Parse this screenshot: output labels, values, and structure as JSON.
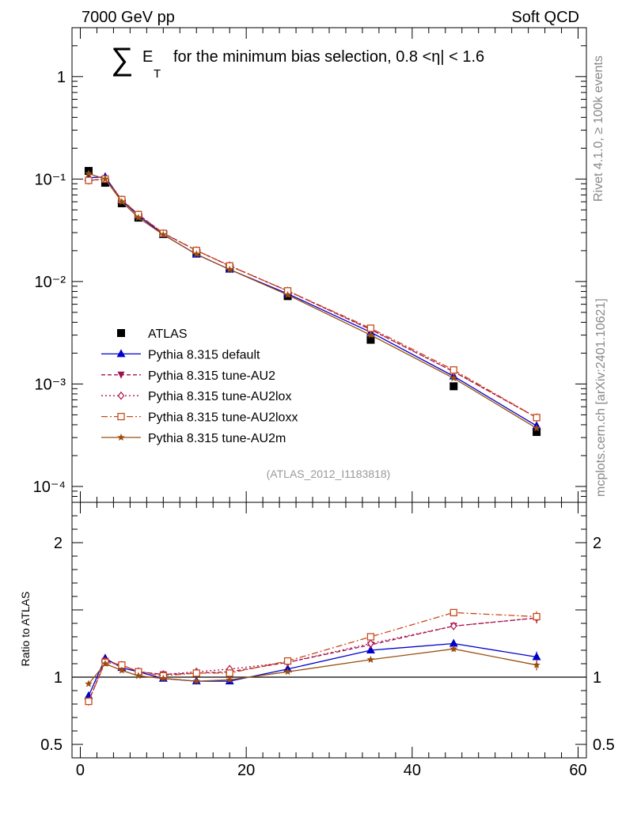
{
  "header": {
    "energy": "7000 GeV pp",
    "process": "Soft QCD",
    "side_rivet": "Rivet 4.1.0, ≥ 100k events",
    "side_mcplots": "mcplots.cern.ch [arXiv:2401.10621]",
    "analysis_id": "(ATLAS_2012_I1183818)"
  },
  "title": {
    "sum_symbol": "∑",
    "e_letter": "E",
    "t_sub": "T",
    "text": "for the minimum bias selection, 0.8 <η| < 1.6"
  },
  "colors": {
    "data": "#000000",
    "default": "#0000cc",
    "au2": "#a01050",
    "au2lox": "#b0104a",
    "au2loxx": "#c84a18",
    "au2m": "#9a4f0f",
    "ref_line": "#000000"
  },
  "chart_data": [
    {
      "type": "line",
      "panel": "main",
      "yscale": "log",
      "xlim": [
        -1,
        61
      ],
      "ylim": [
        7e-05,
        3
      ],
      "y_tick_labels": [
        "1",
        "10⁻¹",
        "10⁻²",
        "10⁻³",
        "10⁻⁴"
      ],
      "y_tick_values": [
        1,
        0.1,
        0.01,
        0.001,
        0.0001
      ],
      "x": [
        1,
        3,
        5,
        7,
        10,
        14,
        18,
        25,
        35,
        45,
        55
      ],
      "series": [
        {
          "name": "ATLAS",
          "key": "data",
          "marker": "square",
          "values": [
            0.12,
            0.092,
            0.058,
            0.042,
            0.029,
            0.019,
            0.0135,
            0.0072,
            0.0027,
            0.00095,
            0.00034
          ]
        },
        {
          "name": "Pythia 8.315 default",
          "key": "default",
          "marker": "triangle-up",
          "dash": "",
          "values": [
            0.103,
            0.105,
            0.062,
            0.044,
            0.0287,
            0.0184,
            0.0131,
            0.0076,
            0.0032,
            0.00119,
            0.00039
          ]
        },
        {
          "name": "Pythia 8.315 tune-AU2",
          "key": "au2",
          "marker": "triangle-down",
          "dash": "5,3",
          "values": [
            0.097,
            0.1,
            0.063,
            0.045,
            0.0297,
            0.0201,
            0.0142,
            0.0081,
            0.0034,
            0.00132,
            0.00047
          ]
        },
        {
          "name": "Pythia 8.315 tune-AU2lox",
          "key": "au2lox",
          "marker": "diamond-open",
          "dash": "2,3",
          "values": [
            0.097,
            0.1,
            0.063,
            0.045,
            0.0295,
            0.0201,
            0.0143,
            0.0081,
            0.0034,
            0.00132,
            0.00047
          ]
        },
        {
          "name": "Pythia 8.315 tune-AU2loxx",
          "key": "au2loxx",
          "marker": "square-open",
          "dash": "8,3,2,3",
          "values": [
            0.097,
            0.1,
            0.063,
            0.045,
            0.0295,
            0.0201,
            0.0142,
            0.0081,
            0.0035,
            0.00137,
            0.00047
          ]
        },
        {
          "name": "Pythia 8.315 tune-AU2m",
          "key": "au2m",
          "marker": "star",
          "dash": "",
          "values": [
            0.113,
            0.1,
            0.06,
            0.042,
            0.0286,
            0.0185,
            0.0131,
            0.0074,
            0.003,
            0.00114,
            0.00037
          ]
        }
      ]
    },
    {
      "type": "line",
      "panel": "ratio",
      "ylabel": "Ratio to ATLAS",
      "xlim": [
        -1,
        61
      ],
      "ylim": [
        0.4,
        2.3
      ],
      "y_tick_labels": [
        "2",
        "1",
        "0.5"
      ],
      "y_tick_values": [
        2,
        1,
        0.5
      ],
      "x_tick_labels": [
        "0",
        "20",
        "40",
        "60"
      ],
      "x_tick_values": [
        0,
        20,
        40,
        60
      ],
      "reference": 1.0,
      "x": [
        1,
        3,
        5,
        7,
        10,
        14,
        18,
        25,
        35,
        45,
        55
      ],
      "series": [
        {
          "name": "Pythia 8.315 default",
          "key": "default",
          "marker": "triangle-up",
          "dash": "",
          "values": [
            0.86,
            1.14,
            1.07,
            1.04,
            0.99,
            0.97,
            0.97,
            1.06,
            1.2,
            1.25,
            1.15
          ],
          "errors": [
            0,
            0,
            0,
            0,
            0,
            0,
            0,
            0,
            0,
            0.02,
            0.04
          ]
        },
        {
          "name": "Pythia 8.315 tune-AU2",
          "key": "au2",
          "marker": "triangle-down",
          "dash": "5,3",
          "values": [
            0.82,
            1.12,
            1.09,
            1.04,
            1.02,
            1.03,
            1.04,
            1.11,
            1.24,
            1.38,
            1.44
          ],
          "errors": [
            0,
            0,
            0,
            0,
            0,
            0,
            0,
            0,
            0,
            0.02,
            0.04
          ]
        },
        {
          "name": "Pythia 8.315 tune-AU2lox",
          "key": "au2lox",
          "marker": "diamond-open",
          "dash": "2,3",
          "values": [
            0.82,
            1.12,
            1.09,
            1.04,
            1.02,
            1.04,
            1.06,
            1.11,
            1.25,
            1.38,
            1.44
          ],
          "errors": [
            0,
            0,
            0,
            0,
            0,
            0,
            0,
            0,
            0,
            0.02,
            0.04
          ]
        },
        {
          "name": "Pythia 8.315 tune-AU2loxx",
          "key": "au2loxx",
          "marker": "square-open",
          "dash": "8,3,2,3",
          "values": [
            0.82,
            1.11,
            1.09,
            1.04,
            1.01,
            1.03,
            1.03,
            1.12,
            1.3,
            1.48,
            1.45
          ],
          "errors": [
            0,
            0,
            0,
            0,
            0,
            0,
            0,
            0,
            0,
            0.02,
            0.04
          ]
        },
        {
          "name": "Pythia 8.315 tune-AU2m",
          "key": "au2m",
          "marker": "star",
          "dash": "",
          "values": [
            0.95,
            1.1,
            1.05,
            1.01,
            0.99,
            0.97,
            0.98,
            1.04,
            1.13,
            1.21,
            1.09
          ],
          "errors": [
            0,
            0,
            0,
            0,
            0,
            0,
            0,
            0,
            0.01,
            0.02,
            0.04
          ]
        }
      ]
    }
  ]
}
